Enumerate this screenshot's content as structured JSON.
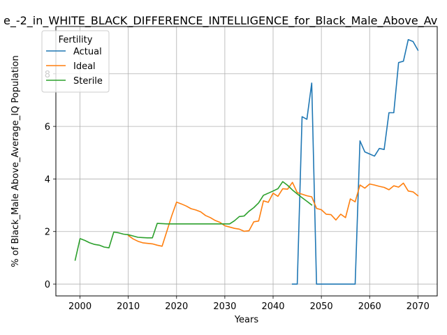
{
  "chart_data": {
    "type": "line",
    "title": "e_-2_in_WHITE_BLACK_DIFFERENCE_INTELLIGENCE_for_Black_Male_Above_Av",
    "xlabel": "Years",
    "ylabel": "% of Black_Male Above_Average_IQ Population",
    "xlim": [
      1995,
      2074
    ],
    "ylim": [
      -0.45,
      9.8
    ],
    "xticks": [
      2000,
      2010,
      2020,
      2030,
      2040,
      2050,
      2060,
      2070
    ],
    "yticks": [
      0,
      2,
      4,
      6,
      8
    ],
    "grid": true,
    "legend": {
      "title": "Fertility",
      "placement": "top-left"
    },
    "series": [
      {
        "name": "Actual",
        "color": "#1f77b4",
        "x": [
          2044,
          2045,
          2046,
          2047,
          2048,
          2049,
          2050,
          2051,
          2052,
          2053,
          2054,
          2055,
          2056,
          2057,
          2058,
          2059,
          2060,
          2061,
          2062,
          2063,
          2064,
          2065,
          2066,
          2067,
          2068,
          2069,
          2070
        ],
        "y": [
          0,
          0,
          6.37,
          6.27,
          7.65,
          0,
          0,
          0,
          0,
          0,
          0,
          0,
          0,
          0,
          5.45,
          5.03,
          4.95,
          4.87,
          5.16,
          5.12,
          6.52,
          6.52,
          8.43,
          8.48,
          9.3,
          9.23,
          8.9
        ]
      },
      {
        "name": "Ideal",
        "color": "#ff7f0e",
        "x": [
          2010,
          2011,
          2012,
          2013,
          2014,
          2015,
          2016,
          2017,
          2018,
          2019,
          2020,
          2021,
          2022,
          2023,
          2024,
          2025,
          2026,
          2027,
          2028,
          2029,
          2030,
          2031,
          2032,
          2033,
          2034,
          2035,
          2036,
          2037,
          2038,
          2039,
          2040,
          2041,
          2042,
          2043,
          2044,
          2045,
          2046,
          2047,
          2048,
          2049,
          2050,
          2051,
          2052,
          2053,
          2054,
          2055,
          2056,
          2057,
          2058,
          2059,
          2060,
          2061,
          2062,
          2063,
          2064,
          2065,
          2066,
          2067,
          2068,
          2069,
          2070
        ],
        "y": [
          1.85,
          1.72,
          1.63,
          1.57,
          1.55,
          1.53,
          1.48,
          1.44,
          2.02,
          2.6,
          3.12,
          3.05,
          2.97,
          2.87,
          2.82,
          2.75,
          2.61,
          2.53,
          2.42,
          2.35,
          2.22,
          2.17,
          2.12,
          2.09,
          2.01,
          2.03,
          2.37,
          2.4,
          3.17,
          3.11,
          3.46,
          3.34,
          3.63,
          3.61,
          3.87,
          3.48,
          3.42,
          3.36,
          3.32,
          2.88,
          2.83,
          2.66,
          2.64,
          2.44,
          2.66,
          2.53,
          3.24,
          3.13,
          3.77,
          3.65,
          3.81,
          3.77,
          3.72,
          3.68,
          3.59,
          3.74,
          3.69,
          3.84,
          3.54,
          3.51,
          3.36
        ]
      },
      {
        "name": "Sterile",
        "color": "#2ca02c",
        "x": [
          1999,
          2000,
          2001,
          2002,
          2003,
          2004,
          2005,
          2006,
          2007,
          2008,
          2009,
          2010,
          2011,
          2012,
          2013,
          2014,
          2015,
          2016,
          2017,
          2018,
          2019,
          2020,
          2021,
          2022,
          2023,
          2024,
          2025,
          2026,
          2027,
          2028,
          2029,
          2030,
          2031,
          2032,
          2033,
          2034,
          2035,
          2036,
          2037,
          2038,
          2039,
          2040,
          2041,
          2042,
          2043,
          2044,
          2045,
          2046,
          2047,
          2048
        ],
        "y": [
          0.91,
          1.73,
          1.66,
          1.57,
          1.51,
          1.48,
          1.41,
          1.38,
          1.98,
          1.95,
          1.9,
          1.88,
          1.83,
          1.78,
          1.77,
          1.76,
          1.76,
          2.31,
          2.3,
          2.29,
          2.29,
          2.29,
          2.29,
          2.29,
          2.29,
          2.29,
          2.29,
          2.29,
          2.29,
          2.29,
          2.29,
          2.29,
          2.29,
          2.41,
          2.57,
          2.59,
          2.77,
          2.91,
          3.09,
          3.38,
          3.46,
          3.54,
          3.63,
          3.9,
          3.76,
          3.58,
          3.43,
          3.29,
          3.15,
          3.01
        ]
      }
    ]
  }
}
